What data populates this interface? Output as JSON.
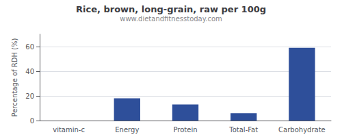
{
  "chart_data": {
    "type": "bar",
    "title": "Rice, brown, long-grain, raw per 100g",
    "subtitle": "www.dietandfitnesstoday.com",
    "categories": [
      "vitamin-c",
      "Energy",
      "Protein",
      "Total-Fat",
      "Carbohydrate"
    ],
    "values": [
      0,
      18,
      13,
      6,
      59
    ],
    "color": "#2e4f9a",
    "ylabel": "Percentage of RDH (%)",
    "ylim": [
      0,
      70
    ],
    "yticks": [
      0,
      20,
      40,
      60
    ],
    "grid": true
  }
}
